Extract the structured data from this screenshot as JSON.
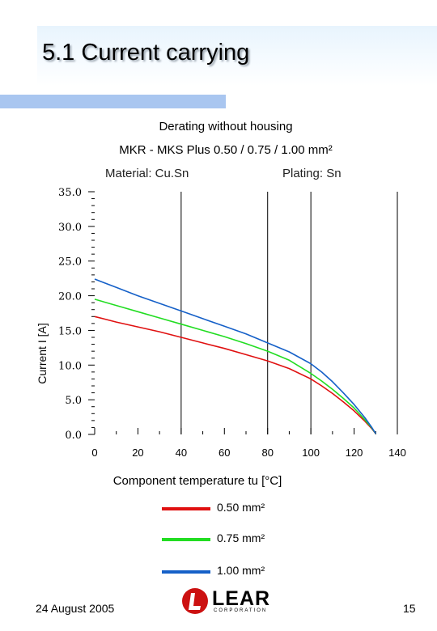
{
  "slide": {
    "title": "5.1 Current carrying",
    "date": "24 August 2005",
    "page_number": "15",
    "logo_text": "LEAR",
    "logo_subtext": "CORPORATION"
  },
  "chart_data": {
    "type": "line",
    "title": "Derating without housing",
    "subtitle": "MKR - MKS  Plus 0.50 / 0.75 / 1.00 mm²",
    "annotations": [
      "Material: Cu.Sn",
      "Plating: Sn"
    ],
    "xlabel": "Component temperature tu [°C]",
    "ylabel": "Current I [A]",
    "xlim": [
      0,
      140
    ],
    "ylim": [
      0,
      35
    ],
    "x_ticks": [
      0,
      20,
      40,
      60,
      80,
      100,
      120,
      140
    ],
    "y_ticks": [
      0,
      5,
      10,
      15,
      20,
      25,
      30,
      35
    ],
    "y_tick_labels": [
      "0.0",
      "5.0",
      "10.0",
      "15.0",
      "20.0",
      "25.0",
      "30.0",
      "35.0"
    ],
    "vertical_gridlines_at": [
      40,
      80,
      100,
      140
    ],
    "legend_position": "bottom",
    "x": [
      0,
      10,
      20,
      30,
      40,
      50,
      60,
      70,
      80,
      90,
      100,
      105,
      110,
      115,
      120,
      125,
      128,
      130
    ],
    "series": [
      {
        "name": "0.50 mm²",
        "color": "#e01010",
        "values": [
          17.0,
          16.2,
          15.5,
          14.8,
          14.0,
          13.2,
          12.4,
          11.5,
          10.6,
          9.5,
          8.0,
          7.0,
          5.9,
          4.7,
          3.4,
          1.9,
          0.9,
          0.1
        ]
      },
      {
        "name": "0.75 mm²",
        "color": "#22dd22",
        "values": [
          19.5,
          18.6,
          17.7,
          16.8,
          15.9,
          15.0,
          14.1,
          13.1,
          12.0,
          10.7,
          8.8,
          7.7,
          6.5,
          5.2,
          3.8,
          2.1,
          1.0,
          0.1
        ]
      },
      {
        "name": "1.00 mm²",
        "color": "#1560c8",
        "values": [
          22.4,
          21.2,
          20.0,
          18.9,
          17.8,
          16.7,
          15.6,
          14.5,
          13.2,
          11.9,
          10.2,
          9.0,
          7.6,
          6.0,
          4.3,
          2.4,
          1.1,
          0.1
        ]
      }
    ]
  }
}
